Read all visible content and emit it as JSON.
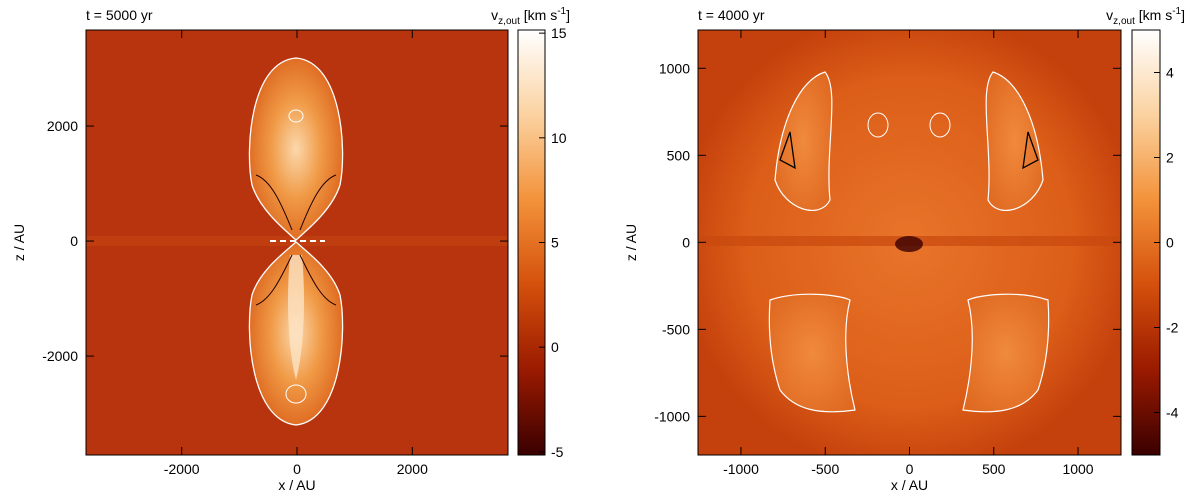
{
  "chart_data": [
    {
      "type": "heatmap",
      "title": "t = 5000 yr",
      "xlabel": "x / AU",
      "ylabel": "z / AU",
      "xlim": [
        -3660,
        3660
      ],
      "ylim": [
        -3720,
        3670
      ],
      "xticks": [
        -2000,
        0,
        2000
      ],
      "yticks": [
        -2000,
        0,
        2000
      ],
      "colorbar": {
        "label": {
          "base": "v",
          "sub": "z,out",
          "mid": " [km s",
          "sup": "-1",
          "end": "]"
        },
        "lim": [
          -5.15,
          15.15
        ],
        "ticks": [
          -5,
          0,
          5,
          10,
          15
        ]
      },
      "colormap": [
        "#3a0000",
        "#9a1a00",
        "#d4500c",
        "#f3923a",
        "#fbd2a0",
        "#ffffff"
      ]
    },
    {
      "type": "heatmap",
      "title": "t = 4000 yr",
      "xlabel": "x / AU",
      "ylabel": "z / AU",
      "xlim": [
        -1255,
        1255
      ],
      "ylim": [
        -1222,
        1220
      ],
      "xticks": [
        -1000,
        -500,
        0,
        500,
        1000
      ],
      "yticks": [
        -1000,
        -500,
        0,
        500,
        1000
      ],
      "colorbar": {
        "label": {
          "base": "v",
          "sub": "z,out",
          "mid": " [km s",
          "sup": "-1",
          "end": "]"
        },
        "lim": [
          -5,
          5
        ],
        "ticks": [
          -4,
          -2,
          0,
          2,
          4
        ]
      },
      "colormap": [
        "#3a0000",
        "#9a1a00",
        "#d4500c",
        "#f3923a",
        "#fbd2a0",
        "#ffffff"
      ]
    }
  ]
}
